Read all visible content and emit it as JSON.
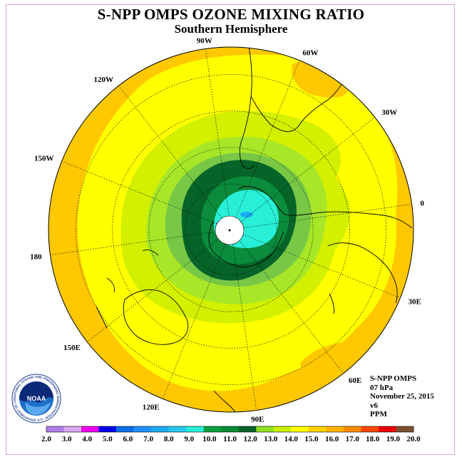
{
  "title": "S-NPP OMPS OZONE MIXING RATIO",
  "subtitle": "Southern Hemisphere",
  "longitude_labels": [
    {
      "text": "90W",
      "lon": -90
    },
    {
      "text": "60W",
      "lon": -60
    },
    {
      "text": "30W",
      "lon": -30
    },
    {
      "text": "0",
      "lon": 0
    },
    {
      "text": "30E",
      "lon": 30
    },
    {
      "text": "60E",
      "lon": 60
    },
    {
      "text": "90E",
      "lon": 90
    },
    {
      "text": "120E",
      "lon": 120
    },
    {
      "text": "150E",
      "lon": 150
    },
    {
      "text": "180",
      "lon": 180
    },
    {
      "text": "150W",
      "lon": -150
    },
    {
      "text": "120W",
      "lon": -120
    }
  ],
  "info": {
    "instrument": "S-NPP OMPS",
    "level": "07 hPa",
    "date": "November 25, 2015",
    "version": "v6",
    "units": "PPM"
  },
  "logo": {
    "text": "NOAA",
    "ring_text": "NATIONAL OCEANIC AND ATMOSPHERIC ADMINISTRATION · U.S. DEPARTMENT OF COMMERCE"
  },
  "colorbar": {
    "labels": [
      "2.0",
      "3.0",
      "4.0",
      "5.0",
      "6.0",
      "7.0",
      "8.0",
      "9.0",
      "10.0",
      "11.0",
      "12.0",
      "13.0",
      "14.0",
      "15.0",
      "16.0",
      "17.0",
      "18.0",
      "19.0",
      "20.0"
    ],
    "colors": [
      "#b07ee6",
      "#d9a6f0",
      "#ee00ee",
      "#0000ee",
      "#0a6ee6",
      "#1e90ff",
      "#1eaaf0",
      "#28c8ee",
      "#28f0d8",
      "#0aa040",
      "#068a32",
      "#066228",
      "#90e020",
      "#c8f000",
      "#ffff00",
      "#ffd200",
      "#ffb400",
      "#ff8c00",
      "#ff4600",
      "#ee0000",
      "#7a5030"
    ]
  },
  "map_colors": {
    "yellow_orange": "#ffc800",
    "yellow": "#ffff00",
    "lime": "#d2f000",
    "light_green": "#a8e628",
    "green": "#78c846",
    "mid_green": "#0a8c3c",
    "dark_green": "#066428",
    "cyan": "#28f0d8"
  }
}
